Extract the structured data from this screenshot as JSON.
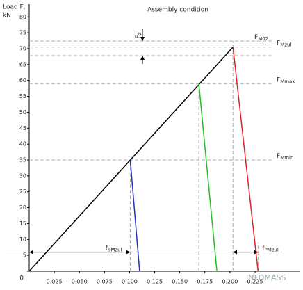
{
  "chart_data": {
    "type": "line",
    "title": "Assembly condition",
    "y_label": [
      "Load F,",
      "kN"
    ],
    "xlim": [
      0,
      0.27
    ],
    "ylim": [
      0,
      84
    ],
    "xticks": [
      {
        "value": 0.025,
        "label": "0.025"
      },
      {
        "value": 0.05,
        "label": "0.050"
      },
      {
        "value": 0.075,
        "label": "0.075"
      },
      {
        "value": 0.1,
        "label": "0.100"
      },
      {
        "value": 0.125,
        "label": "0.125"
      },
      {
        "value": 0.15,
        "label": "0.150"
      },
      {
        "value": 0.175,
        "label": "0.175"
      },
      {
        "value": 0.2,
        "label": "0.200"
      },
      {
        "value": 0.225,
        "label": "0.225"
      }
    ],
    "yticks": [
      0,
      5,
      10,
      15,
      20,
      25,
      30,
      35,
      40,
      45,
      50,
      55,
      60,
      65,
      70,
      75,
      80
    ],
    "lines": [
      {
        "color": "#000000",
        "x": [
          0,
          0.203
        ],
        "y": [
          0,
          70.5
        ]
      },
      {
        "color": "#e02020",
        "x": [
          0.203,
          0.228
        ],
        "y": [
          70.5,
          0
        ]
      },
      {
        "color": "#20c020",
        "x": [
          0.169,
          0.187
        ],
        "y": [
          59,
          0
        ]
      },
      {
        "color": "#2030c0",
        "x": [
          0.1007,
          0.11
        ],
        "y": [
          35,
          0
        ]
      }
    ],
    "hlines": [
      {
        "value": 72.4,
        "label": {
          "main": "F",
          "sub": "M02"
        }
      },
      {
        "value": 70.5,
        "label": {
          "main": "F",
          "sub": "Mzul"
        }
      },
      {
        "value": 67.8
      },
      {
        "value": 59,
        "label": {
          "main": "F",
          "sub": "Mmax"
        }
      },
      {
        "value": 35,
        "label": {
          "main": "F",
          "sub": "Mmin"
        }
      }
    ],
    "vlines": [
      {
        "x": 0.1007,
        "y": [
          0,
          35
        ]
      },
      {
        "x": 0.169,
        "y": [
          0,
          59
        ]
      },
      {
        "x": 0.203,
        "y": [
          0,
          72.4
        ]
      },
      {
        "x": 0.228,
        "y": [
          0,
          9
        ]
      }
    ],
    "dimensions": [
      {
        "label": {
          "main": "f",
          "sub": "SMzul"
        },
        "x": [
          0,
          0.1007
        ],
        "y": 6
      },
      {
        "label": {
          "main": "f",
          "sub": "PMzul"
        },
        "x": [
          0.203,
          0.228
        ],
        "y": 6
      }
    ],
    "fz": {
      "label": {
        "main": "F",
        "sub": "z"
      },
      "range": [
        67.8,
        72.4
      ]
    },
    "watermark": "INFOMASS"
  }
}
